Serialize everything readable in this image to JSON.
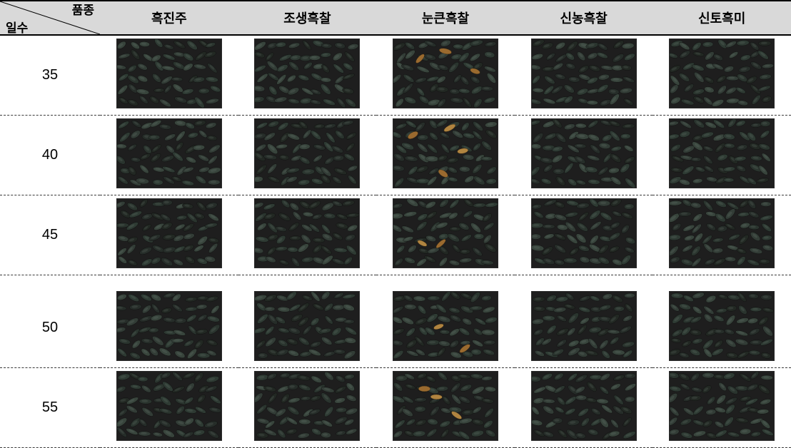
{
  "header": {
    "diag_top": "품종",
    "diag_bot": "일수",
    "cols": [
      "흑진주",
      "조생흑찰",
      "눈큰흑찰",
      "신농흑찰",
      "신토흑미"
    ]
  },
  "rows": [
    {
      "label": "35",
      "spacer_after": false
    },
    {
      "label": "40",
      "spacer_after": false
    },
    {
      "label": "45",
      "spacer_after": true
    },
    {
      "label": "50",
      "spacer_after": false
    },
    {
      "label": "55",
      "spacer_after": false
    }
  ],
  "rice_style": {
    "base_fill": "#1e1e1e",
    "grain_fills": [
      "#2e3a33",
      "#2a342e",
      "#323c36",
      "#262d29",
      "#38443c",
      "#222823"
    ],
    "highlight_fill": "#9a6a2f",
    "highlight_fill2": "#b08440"
  },
  "highlight_map": {
    "35": [
      false,
      false,
      true,
      false,
      false
    ],
    "40": [
      false,
      false,
      true,
      false,
      false
    ],
    "45": [
      false,
      false,
      true,
      false,
      false
    ],
    "50": [
      false,
      false,
      true,
      false,
      false
    ],
    "55": [
      false,
      false,
      true,
      false,
      false
    ]
  }
}
